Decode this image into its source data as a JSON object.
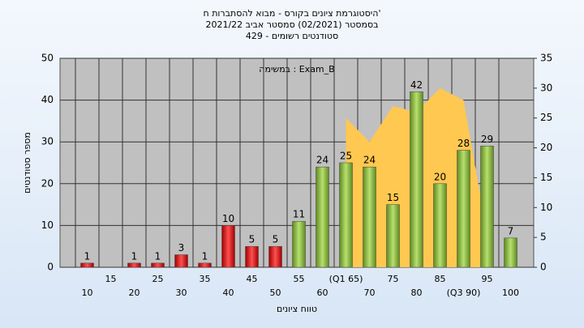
{
  "chart_data": {
    "type": "bar",
    "title": [
      "היסטוגרמת ציונים בקורס - מבוא להסתברות ח'",
      "בסמסטר  (02/2021)  סמסטר אביב 2021/22",
      "סטודנטים רשומים - 429"
    ],
    "annotation": "במשימה : Exam_B",
    "ylabel": "מספר סטודנטים",
    "xlabel": "טווח ציונים",
    "categories": [
      "10",
      "15",
      "20",
      "25",
      "30",
      "35",
      "40",
      "45",
      "50",
      "55",
      "60",
      "(Q1 65)",
      "70",
      "75",
      "80",
      "85",
      "(Q3 90)",
      "95",
      "100"
    ],
    "values": [
      1,
      0,
      1,
      1,
      3,
      1,
      10,
      5,
      5,
      11,
      24,
      25,
      24,
      15,
      42,
      20,
      28,
      29,
      7
    ],
    "value_labels": [
      "1",
      null,
      "1",
      "1",
      "3",
      "1",
      "10",
      "5",
      "5",
      "11",
      "24",
      "25",
      "24",
      "15",
      "42",
      "20",
      "28",
      "29",
      "7"
    ],
    "colors": [
      "#e02020",
      "#e02020",
      "#e02020",
      "#e02020",
      "#e02020",
      "#e02020",
      "#e02020",
      "#e02020",
      "#e02020",
      "#8fc040",
      "#8fc040",
      "#8fc040",
      "#8fc040",
      "#8fc040",
      "#8fc040",
      "#8fc040",
      "#8fc040",
      "#8fc040",
      "#8fc040"
    ],
    "area": {
      "x": [
        65,
        70,
        75,
        80,
        85,
        90,
        94
      ],
      "values": [
        25,
        21,
        27,
        26,
        30,
        28,
        10
      ],
      "color": "#ffc850",
      "axis": "y2"
    },
    "ylim": [
      0,
      50
    ],
    "yticks": [
      0,
      10,
      20,
      30,
      40,
      50
    ],
    "y2lim": [
      0,
      35
    ],
    "y2ticks": [
      0,
      5,
      10,
      15,
      20,
      25,
      30,
      35
    ],
    "grid": true
  }
}
